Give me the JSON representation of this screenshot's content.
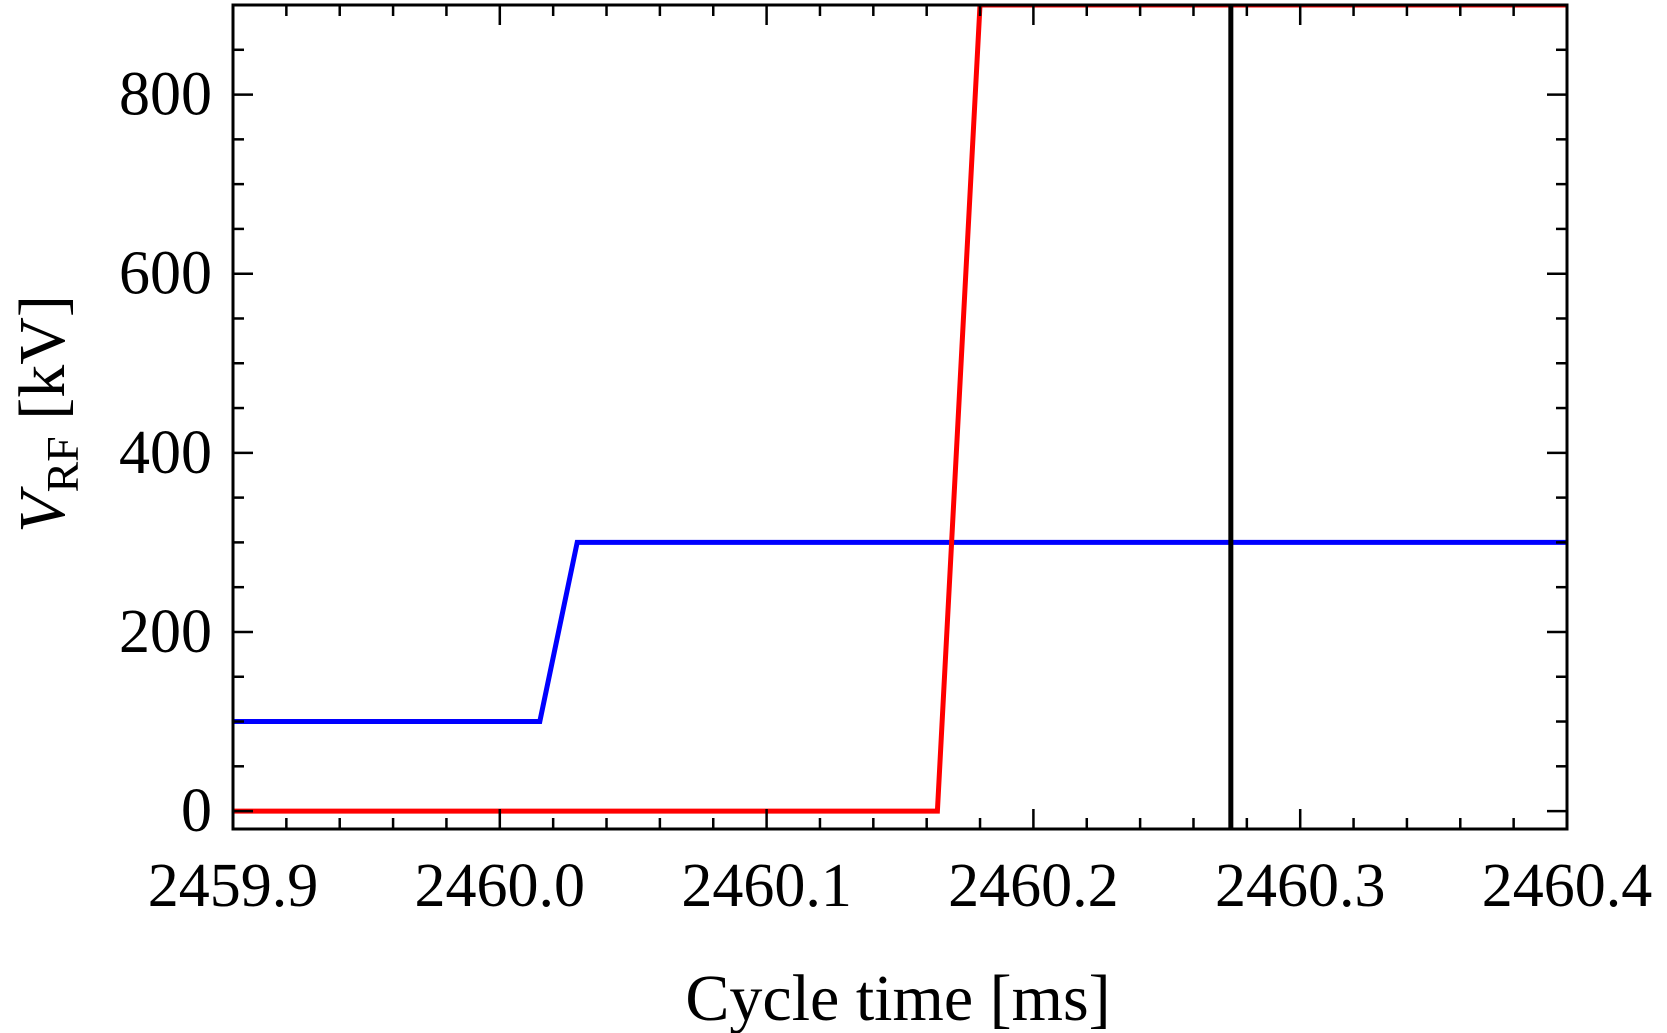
{
  "chart_data": {
    "type": "line",
    "xlabel": "Cycle time [ms]",
    "ylabel_main": "V",
    "ylabel_sub": "RF",
    "ylabel_unit": " [kV]",
    "xlim": [
      2459.9,
      2460.4
    ],
    "ylim": [
      -20,
      900
    ],
    "x_ticks": [
      2459.9,
      2460.0,
      2460.1,
      2460.2,
      2460.3,
      2460.4
    ],
    "x_tick_labels": [
      "2459.9",
      "2460.0",
      "2460.1",
      "2460.2",
      "2460.3",
      "2460.4"
    ],
    "x_minor_step": 0.02,
    "y_ticks": [
      0,
      200,
      400,
      600,
      800
    ],
    "y_tick_labels": [
      "0",
      "200",
      "400",
      "600",
      "800"
    ],
    "y_minor_step": 50,
    "grid": false,
    "series": [
      {
        "color": "#0000ff",
        "x": [
          2459.9,
          2460.015,
          2460.029,
          2460.4
        ],
        "y": [
          100,
          100,
          300,
          300
        ]
      },
      {
        "color": "#ff0000",
        "x": [
          2459.9,
          2460.164,
          2460.18,
          2460.4
        ],
        "y": [
          0,
          0,
          900,
          900
        ]
      }
    ],
    "vlines": [
      {
        "x": 2460.274,
        "color": "#000000"
      }
    ]
  }
}
